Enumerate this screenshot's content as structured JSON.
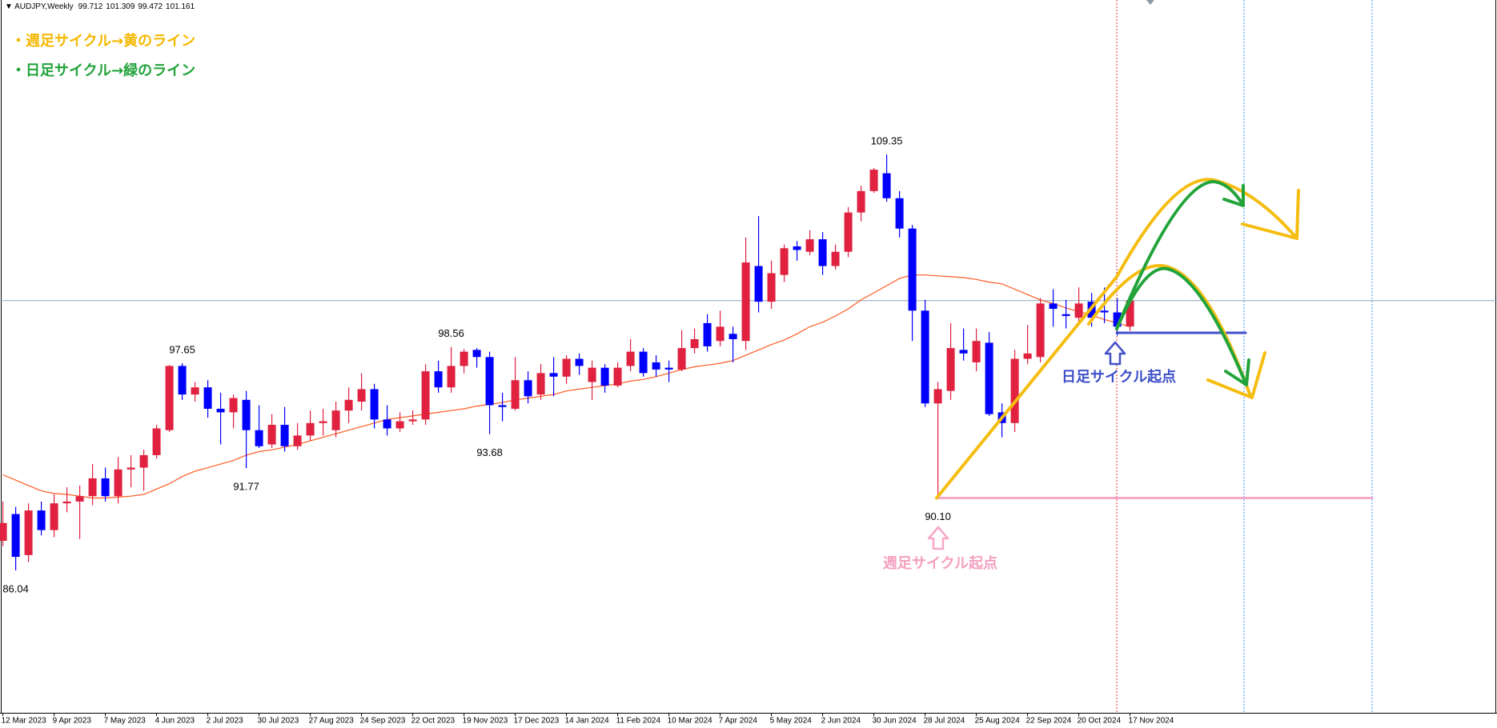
{
  "chart_data": {
    "type": "candlestick",
    "symbol": "AUDJPY,Weekly",
    "notes": [
      "・週足サイクル→黄のライン",
      "・日足サイクル→緑のライン"
    ],
    "annotations": {
      "daily_start": "日足サイクル起点",
      "weekly_start": "週足サイクル起点"
    },
    "categories": [
      "12 Mar 2023",
      null,
      null,
      null,
      "9 Apr 2023",
      null,
      null,
      null,
      "7 May 2023",
      null,
      null,
      null,
      "4 Jun 2023",
      null,
      null,
      null,
      "2 Jul 2023",
      null,
      null,
      null,
      "30 Jul 2023",
      null,
      null,
      null,
      "27 Aug 2023",
      null,
      null,
      null,
      "24 Sep 2023",
      null,
      null,
      null,
      "22 Oct 2023",
      null,
      null,
      null,
      "19 Nov 2023",
      null,
      null,
      null,
      "17 Dec 2023",
      null,
      null,
      null,
      "14 Jan 2024",
      null,
      null,
      null,
      "11 Feb 2024",
      null,
      null,
      null,
      "10 Mar 2024",
      null,
      null,
      null,
      "7 Apr 2024",
      null,
      null,
      null,
      "5 May 2024",
      null,
      null,
      null,
      "2 Jun 2024",
      null,
      null,
      null,
      "30 Jun 2024",
      null,
      null,
      null,
      "28 Jul 2024",
      null,
      null,
      null,
      "25 Aug 2024",
      null,
      null,
      null,
      "22 Sep 2024",
      null,
      null,
      null,
      "20 Oct 2024",
      null,
      null,
      null,
      "17 Nov 2024"
    ],
    "open": [
      87.7,
      89.2,
      86.9,
      89.4,
      88.3,
      89.8,
      89.9,
      90.2,
      91.2,
      90.2,
      91.7,
      91.8,
      92.5,
      93.9,
      97.5,
      95.9,
      96.3,
      95.1,
      94.9,
      95.6,
      93.9,
      93.1,
      94.2,
      93.0,
      93.6,
      94.3,
      93.9,
      95.0,
      95.5,
      96.2,
      94.5,
      94.0,
      94.4,
      94.5,
      97.2,
      96.3,
      97.5,
      98.4,
      98.0,
      95.3,
      95.1,
      96.7,
      95.9,
      97.1,
      96.9,
      97.9,
      96.6,
      97.4,
      96.4,
      97.5,
      98.3,
      97.7,
      97.4,
      97.3,
      98.5,
      99.9,
      98.9,
      99.3,
      98.9,
      103.1,
      101.1,
      102.6,
      104.2,
      103.9,
      104.6,
      103.1,
      103.9,
      106.1,
      107.3,
      108.3,
      106.9,
      105.2,
      100.6,
      95.4,
      96.1,
      98.4,
      97.7,
      98.8,
      94.9,
      94.3,
      97.9,
      98.0,
      101.0,
      100.4,
      100.2,
      101.1,
      100.6,
      100.5,
      99.712
    ],
    "high": [
      89.9,
      89.6,
      89.8,
      89.9,
      90.3,
      90.7,
      90.8,
      92.0,
      91.8,
      92.4,
      92.5,
      92.8,
      94.2,
      97.55,
      97.65,
      96.6,
      96.7,
      96.0,
      95.9,
      96.1,
      95.3,
      94.8,
      95.2,
      94.3,
      95.0,
      95.1,
      95.5,
      96.3,
      97.1,
      96.5,
      95.3,
      94.9,
      95.0,
      97.6,
      97.8,
      98.56,
      98.45,
      98.5,
      98.3,
      96.0,
      98.0,
      97.2,
      97.6,
      98.0,
      98.1,
      98.2,
      97.8,
      97.6,
      97.7,
      99.0,
      98.5,
      98.1,
      97.8,
      99.5,
      99.6,
      100.4,
      100.6,
      99.7,
      104.7,
      105.9,
      103.4,
      104.3,
      104.5,
      105.1,
      105.0,
      104.3,
      106.4,
      107.6,
      108.6,
      109.35,
      107.3,
      105.4,
      101.2,
      96.6,
      99.9,
      99.6,
      99.6,
      99.4,
      95.4,
      98.4,
      99.8,
      101.3,
      101.8,
      101.2,
      101.9,
      101.6,
      101.9,
      101.3,
      101.309
    ],
    "low": [
      87.4,
      86.04,
      86.5,
      88.0,
      87.9,
      89.3,
      87.8,
      89.7,
      89.9,
      89.8,
      90.7,
      90.5,
      92.3,
      93.8,
      95.6,
      95.5,
      94.6,
      93.1,
      94.0,
      91.77,
      92.9,
      92.9,
      92.7,
      92.8,
      93.3,
      93.6,
      93.5,
      94.3,
      95.0,
      94.0,
      93.6,
      93.8,
      94.2,
      94.2,
      96.0,
      96.0,
      97.1,
      97.4,
      93.68,
      94.4,
      95.0,
      95.4,
      95.6,
      95.8,
      96.5,
      97.0,
      95.6,
      96.0,
      96.3,
      97.2,
      96.9,
      96.9,
      96.6,
      97.2,
      98.2,
      98.3,
      98.6,
      97.7,
      98.4,
      100.5,
      100.7,
      102.2,
      103.4,
      103.7,
      102.6,
      102.9,
      103.6,
      105.6,
      107.2,
      106.7,
      104.7,
      98.9,
      95.2,
      90.1,
      95.6,
      97.8,
      97.2,
      94.7,
      93.5,
      93.8,
      97.6,
      97.7,
      99.7,
      99.6,
      99.9,
      99.7,
      99.9,
      99.2,
      99.472
    ],
    "close": [
      88.7,
      86.8,
      89.4,
      88.3,
      89.8,
      89.9,
      90.2,
      91.2,
      90.2,
      91.7,
      91.8,
      92.5,
      94.0,
      97.5,
      95.9,
      96.3,
      95.1,
      94.9,
      95.7,
      93.9,
      93.0,
      94.2,
      93.0,
      93.6,
      94.3,
      94.4,
      95.0,
      95.6,
      96.2,
      94.5,
      94.0,
      94.4,
      94.5,
      97.2,
      96.3,
      97.5,
      98.3,
      98.0,
      95.3,
      95.2,
      96.7,
      95.8,
      97.1,
      96.9,
      97.9,
      97.5,
      97.4,
      96.4,
      97.4,
      98.3,
      97.1,
      97.3,
      97.3,
      98.5,
      99.0,
      98.6,
      99.7,
      99.0,
      103.3,
      101.1,
      102.7,
      104.1,
      104.0,
      104.6,
      103.1,
      103.9,
      106.1,
      107.3,
      108.5,
      106.9,
      105.2,
      100.6,
      95.4,
      96.2,
      98.5,
      98.2,
      98.9,
      94.8,
      94.3,
      97.9,
      98.2,
      101.0,
      100.7,
      100.3,
      101.0,
      100.2,
      100.5,
      99.7,
      101.161
    ],
    "high_labels": {
      "14": "97.65",
      "35": "98.56",
      "69": "109.35"
    },
    "low_labels": {
      "1": "86.04",
      "19": "91.77",
      "38": "93.68",
      "73": "90.10"
    },
    "up_color": "#e0213f",
    "down_color": "#0000ff",
    "ma": {
      "color": "#ff5a1f",
      "values": [
        91.4,
        91.1,
        90.8,
        90.5,
        90.35,
        90.3,
        90.2,
        90.1,
        90.1,
        90.15,
        90.2,
        90.3,
        90.6,
        90.9,
        91.3,
        91.6,
        91.8,
        92.0,
        92.2,
        92.5,
        92.7,
        92.8,
        92.95,
        93.1,
        93.3,
        93.5,
        93.7,
        93.9,
        94.1,
        94.3,
        94.5,
        94.6,
        94.7,
        94.8,
        94.9,
        95.0,
        95.1,
        95.25,
        95.35,
        95.45,
        95.6,
        95.7,
        95.8,
        95.9,
        96.1,
        96.2,
        96.3,
        96.4,
        96.5,
        96.65,
        96.75,
        96.9,
        97.1,
        97.3,
        97.45,
        97.55,
        97.65,
        97.8,
        98.1,
        98.4,
        98.7,
        98.95,
        99.3,
        99.7,
        99.95,
        100.3,
        100.7,
        101.2,
        101.6,
        102.0,
        102.4,
        102.6,
        102.6,
        102.55,
        102.5,
        102.45,
        102.35,
        102.2,
        102.1,
        101.8,
        101.5,
        101.2,
        101.0,
        100.75,
        100.55,
        100.35,
        100.1,
        99.9,
        99.7
      ]
    },
    "price_line_color": "#8ea7bb",
    "ylim": [
      78.06,
      118.01
    ]
  }
}
